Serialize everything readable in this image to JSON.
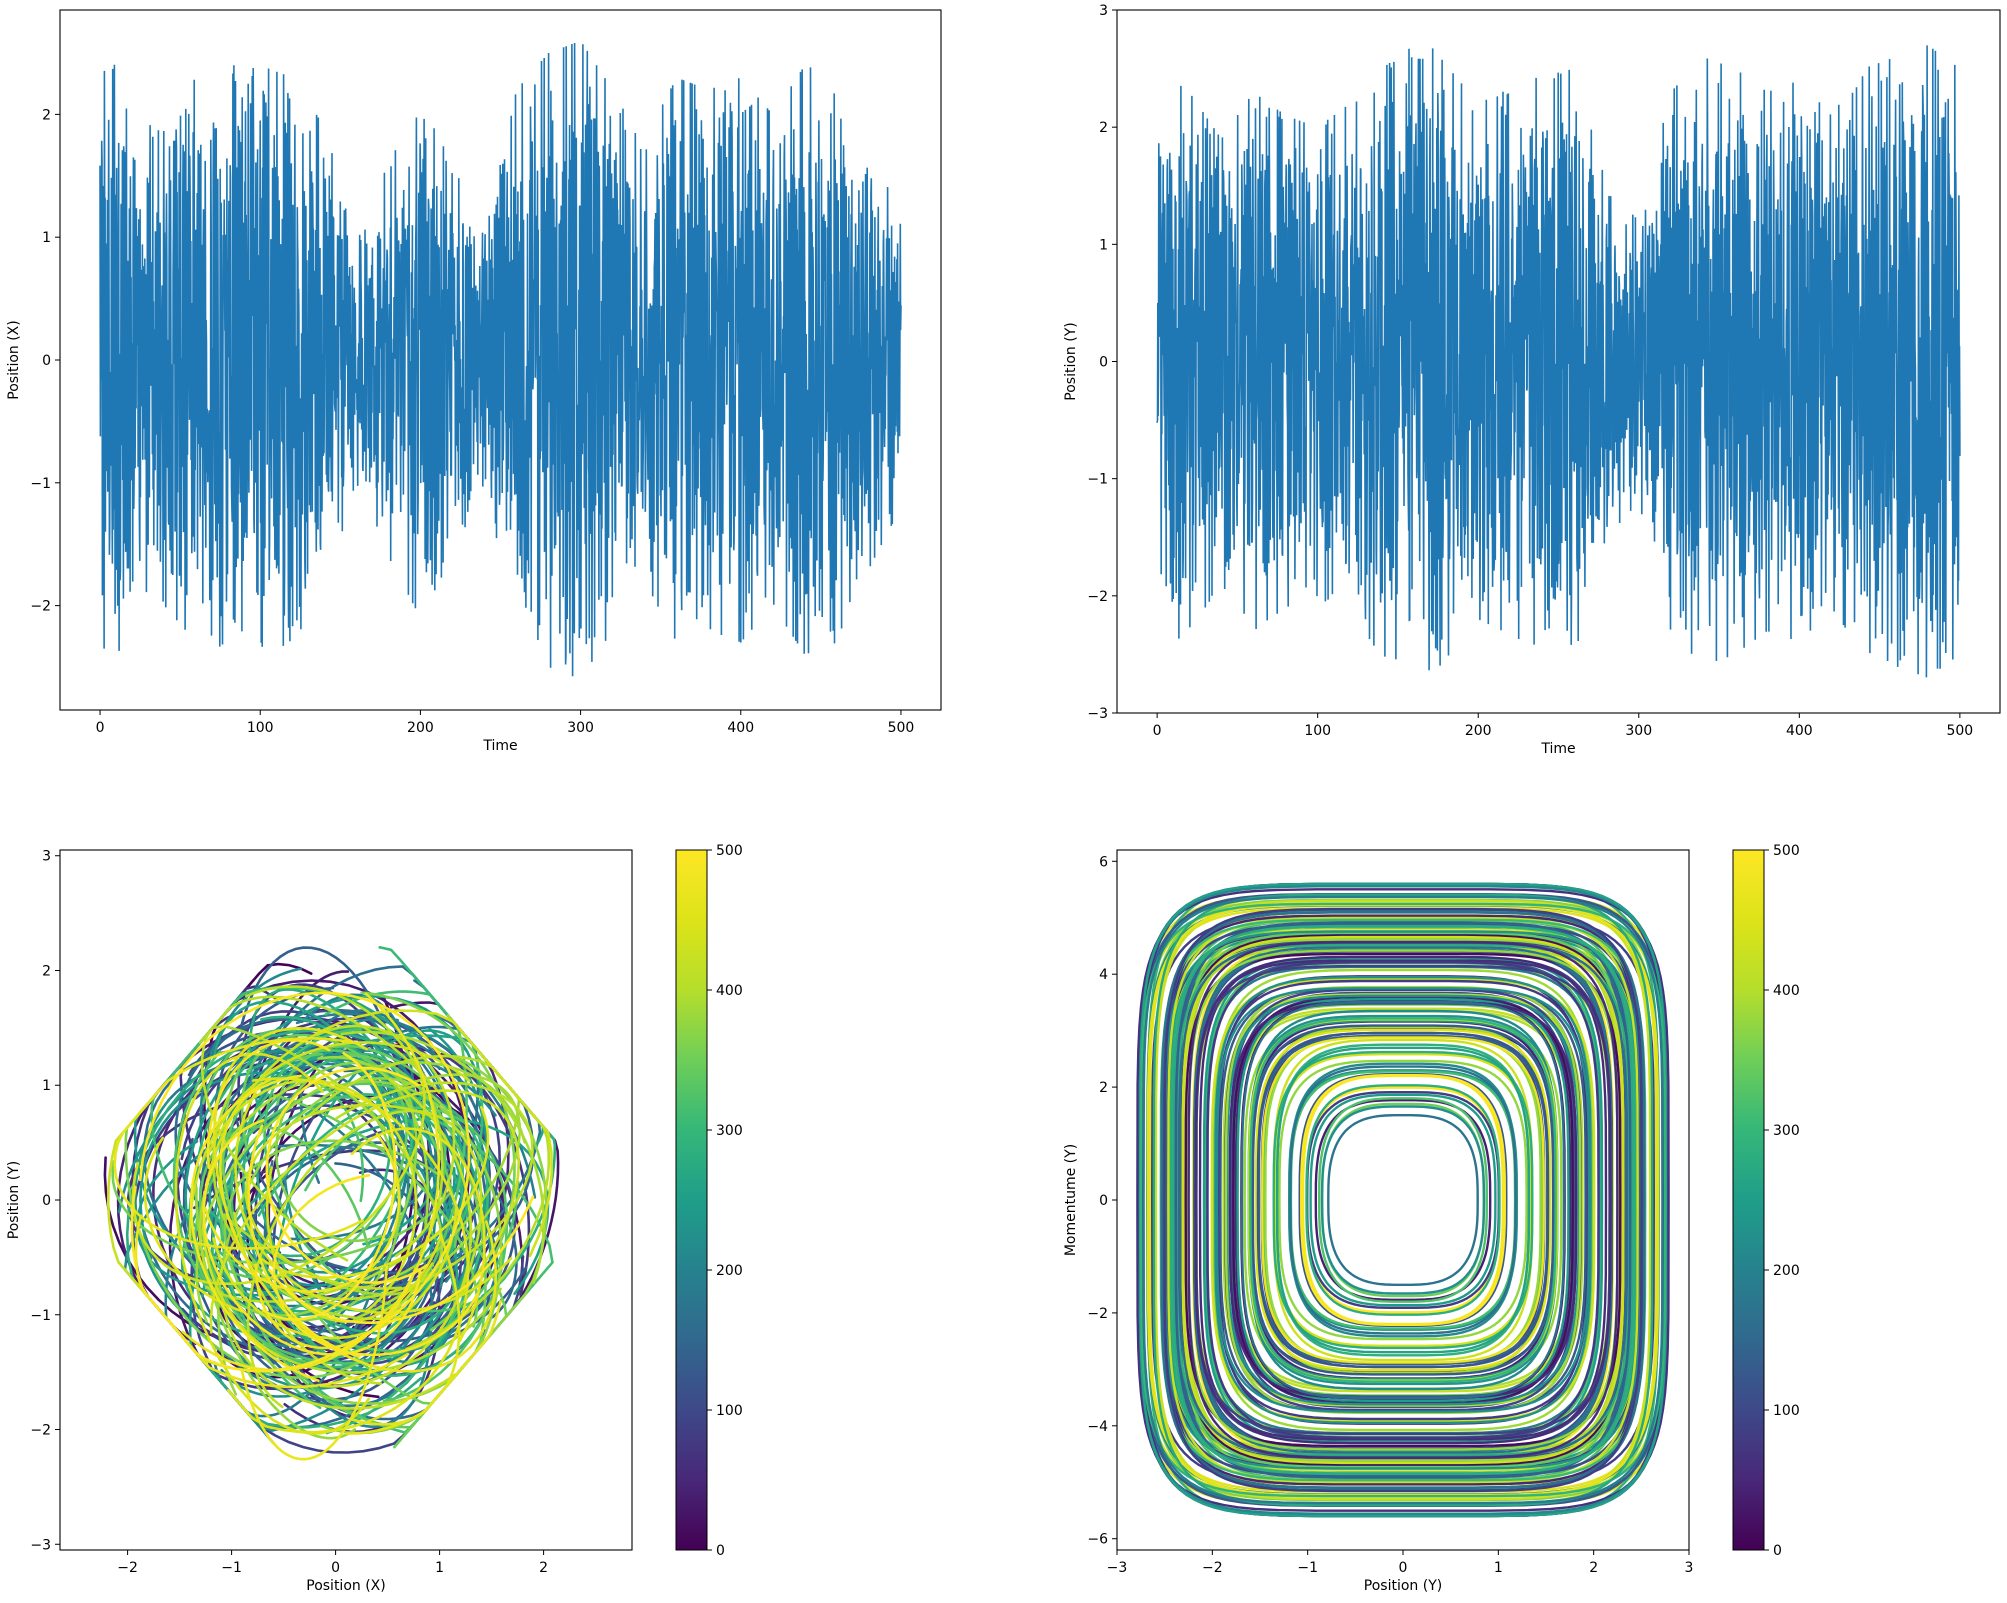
{
  "chart_data": [
    {
      "id": "x-time",
      "type": "line",
      "xlabel": "Time",
      "ylabel": "Position (X)",
      "xlim": [
        -25,
        525
      ],
      "ylim": [
        -2.85,
        2.85
      ],
      "xticks": [
        0,
        100,
        200,
        300,
        400,
        500
      ],
      "yticks": [
        -2,
        -1,
        0,
        1,
        2
      ],
      "xtick_labels": [
        "0",
        "100",
        "200",
        "300",
        "400",
        "500"
      ],
      "ytick_labels": [
        "−2",
        "−1",
        "0",
        "1",
        "2"
      ],
      "color": "#1f77b4",
      "series": [
        {
          "x_range": [
            0,
            500
          ],
          "amplitude_envelope": {
            "t": [
              0,
              10,
              20,
              40,
              60,
              80,
              100,
              120,
              140,
              160,
              180,
              200,
              220,
              240,
              260,
              280,
              300,
              320,
              340,
              360,
              380,
              400,
              420,
              440,
              460,
              480,
              500
            ],
            "amp": [
              2.3,
              2.5,
              1.8,
              2.0,
              2.3,
              2.4,
              2.4,
              2.3,
              1.9,
              1.0,
              1.6,
              2.1,
              1.6,
              1.0,
              2.2,
              2.5,
              2.6,
              2.2,
              1.8,
              2.3,
              2.2,
              2.3,
              2.0,
              2.4,
              2.3,
              1.7,
              1.2
            ]
          }
        }
      ]
    },
    {
      "id": "y-time",
      "type": "line",
      "xlabel": "Time",
      "ylabel": "Position (Y)",
      "xlim": [
        -25,
        525
      ],
      "ylim": [
        -3.0,
        3.0
      ],
      "xticks": [
        0,
        100,
        200,
        300,
        400,
        500
      ],
      "yticks": [
        -3,
        -2,
        -1,
        0,
        1,
        2,
        3
      ],
      "xtick_labels": [
        "0",
        "100",
        "200",
        "300",
        "400",
        "500"
      ],
      "ytick_labels": [
        "−3",
        "−2",
        "−1",
        "0",
        "1",
        "2",
        "3"
      ],
      "color": "#1f77b4",
      "series": [
        {
          "x_range": [
            0,
            500
          ],
          "amplitude_envelope": {
            "t": [
              0,
              10,
              20,
              40,
              60,
              80,
              100,
              120,
              140,
              160,
              170,
              200,
              230,
              260,
              280,
              300,
              320,
              340,
              360,
              380,
              400,
              420,
              440,
              460,
              480,
              500
            ],
            "amp": [
              1.8,
              2.4,
              2.3,
              1.9,
              2.3,
              2.1,
              2.0,
              2.2,
              2.5,
              2.7,
              2.7,
              2.2,
              2.4,
              2.5,
              1.5,
              1.2,
              2.3,
              2.6,
              2.5,
              2.3,
              2.4,
              2.1,
              2.5,
              2.6,
              2.7,
              2.5
            ]
          }
        }
      ]
    },
    {
      "id": "x-y-phase",
      "type": "line",
      "xlabel": "Position (X)",
      "ylabel": "Position (Y)",
      "xlim": [
        -2.65,
        2.85
      ],
      "ylim": [
        -3.05,
        3.05
      ],
      "xticks": [
        -2,
        -1,
        0,
        1,
        2
      ],
      "yticks": [
        -3,
        -2,
        -1,
        0,
        1,
        2,
        3
      ],
      "xtick_labels": [
        "−2",
        "−1",
        "0",
        "1",
        "2"
      ],
      "ytick_labels": [
        "−3",
        "−2",
        "−1",
        "0",
        "1",
        "2",
        "3"
      ],
      "colorbar": {
        "cmap": "viridis",
        "range": [
          0,
          500
        ],
        "ticks": [
          0,
          100,
          200,
          300,
          400,
          500
        ],
        "tick_labels": [
          "0",
          "100",
          "200",
          "300",
          "400",
          "500"
        ]
      },
      "series": [
        {
          "shape": "diamond",
          "x_extent": [
            -2.55,
            2.6
          ],
          "y_extent": [
            -2.75,
            2.75
          ],
          "color_by": "time",
          "t_range": [
            0,
            500
          ]
        }
      ]
    },
    {
      "id": "y-py-phase",
      "type": "line",
      "xlabel": "Position (Y)",
      "ylabel": "Momentume (Y)",
      "xlim": [
        -3.0,
        3.0
      ],
      "ylim": [
        -6.2,
        6.2
      ],
      "xticks": [
        -3,
        -2,
        -1,
        0,
        1,
        2,
        3
      ],
      "yticks": [
        -6,
        -4,
        -2,
        0,
        2,
        4,
        6
      ],
      "xtick_labels": [
        "−3",
        "−2",
        "−1",
        "0",
        "1",
        "2",
        "3"
      ],
      "ytick_labels": [
        "−6",
        "−4",
        "−2",
        "0",
        "2",
        "4",
        "6"
      ],
      "colorbar": {
        "cmap": "viridis",
        "range": [
          0,
          500
        ],
        "ticks": [
          0,
          100,
          200,
          300,
          400,
          500
        ],
        "tick_labels": [
          "0",
          "100",
          "200",
          "300",
          "400",
          "500"
        ]
      },
      "series": [
        {
          "shape": "nested-rounded-loops",
          "x_extent": [
            -2.8,
            2.8
          ],
          "y_extent": [
            -5.6,
            5.6
          ],
          "color_by": "time",
          "t_range": [
            0,
            500
          ]
        }
      ]
    }
  ]
}
